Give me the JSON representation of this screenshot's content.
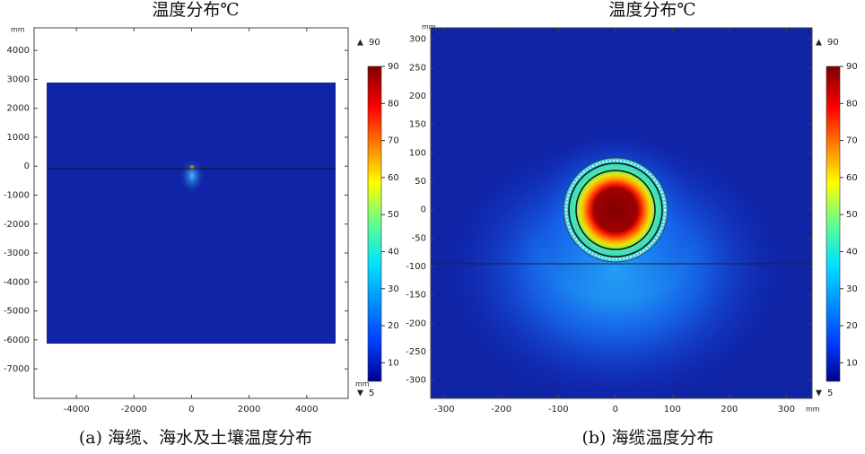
{
  "chart_data": [
    {
      "type": "heatmap",
      "title": "温度分布℃",
      "caption": "(a) 海缆、海水及土壤温度分布",
      "x_unit": "mm",
      "y_unit": "mm",
      "xlim": [
        -5470,
        5440
      ],
      "ylim": [
        -8020,
        4780
      ],
      "xticks": [
        -4000,
        -2000,
        0,
        2000,
        4000
      ],
      "yticks": [
        4000,
        3000,
        2000,
        1000,
        0,
        -1000,
        -2000,
        -3000,
        -4000,
        -5000,
        -6000,
        -7000
      ],
      "colorbar": {
        "lim": [
          5,
          90
        ],
        "ticks": [
          10,
          20,
          30,
          40,
          50,
          60,
          70,
          80,
          90
        ],
        "max": 90,
        "min": 5
      }
    },
    {
      "type": "heatmap",
      "title": "温度分布℃",
      "caption": "(b) 海缆温度分布",
      "x_unit": "mm",
      "y_unit": "mm",
      "xlim": [
        -324,
        345
      ],
      "ylim": [
        -332,
        320
      ],
      "xticks": [
        -300,
        -200,
        -100,
        0,
        100,
        200,
        300
      ],
      "yticks": [
        300,
        250,
        200,
        150,
        100,
        50,
        0,
        -50,
        -100,
        -150,
        -200,
        -250,
        -300
      ],
      "colorbar": {
        "lim": [
          5,
          90
        ],
        "ticks": [
          10,
          20,
          30,
          40,
          50,
          60,
          70,
          80,
          90
        ],
        "max": 90,
        "min": 5
      }
    }
  ]
}
